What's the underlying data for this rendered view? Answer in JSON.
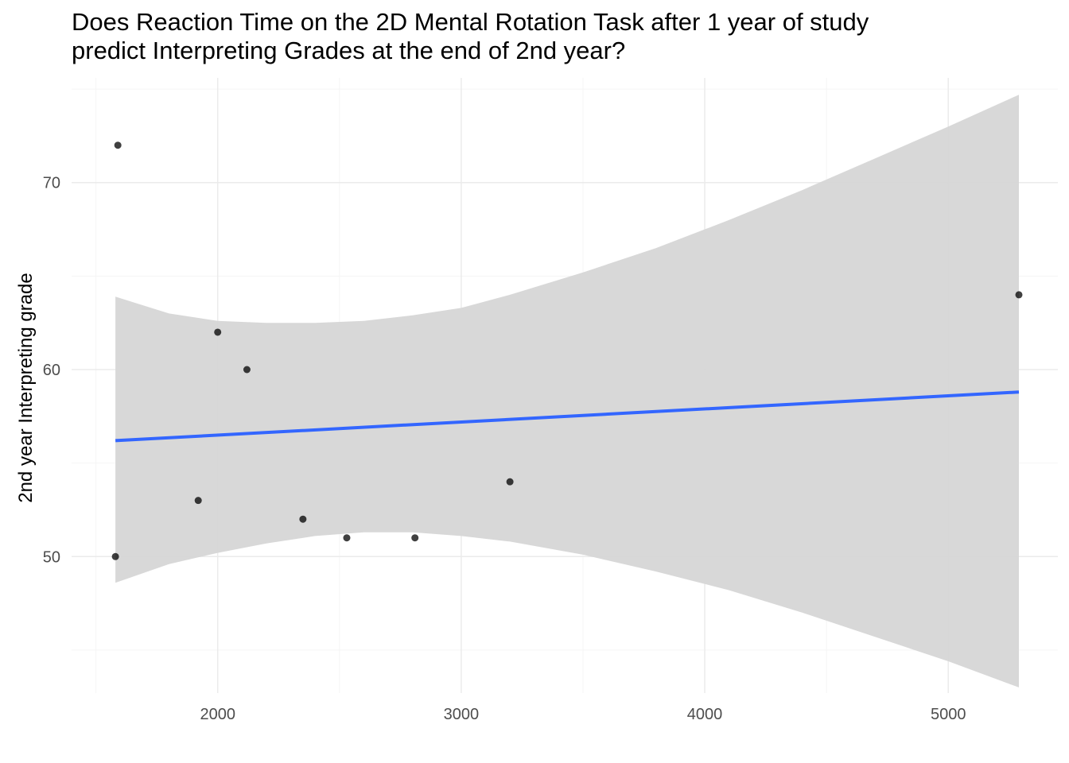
{
  "chart_data": {
    "type": "scatter",
    "title_lines": [
      "Does Reaction Time on the 2D Mental Rotation Task after 1 year of study",
      "predict Interpreting Grades at the end of 2nd year?"
    ],
    "xlabel": "",
    "ylabel": "2nd year Interpreting grade",
    "xlim": [
      1400,
      5450
    ],
    "ylim": [
      42.7,
      75.6
    ],
    "x_ticks": [
      2000,
      3000,
      4000,
      5000
    ],
    "x_minor": [
      1500,
      2500,
      3500,
      4500
    ],
    "y_ticks": [
      50,
      60,
      70
    ],
    "y_minor": [
      45,
      55,
      65,
      75
    ],
    "grid": true,
    "colors": {
      "points": "#000000",
      "line": "#3366ff",
      "band": "#d6d6d6",
      "grid_major": "#ebebeb",
      "grid_minor": "#f5f5f5"
    },
    "points": [
      {
        "x": 1590,
        "y": 72
      },
      {
        "x": 1580,
        "y": 50
      },
      {
        "x": 1920,
        "y": 53
      },
      {
        "x": 2000,
        "y": 62
      },
      {
        "x": 2120,
        "y": 60
      },
      {
        "x": 2350,
        "y": 52
      },
      {
        "x": 2530,
        "y": 51
      },
      {
        "x": 2810,
        "y": 51
      },
      {
        "x": 3200,
        "y": 54
      },
      {
        "x": 5290,
        "y": 64
      }
    ],
    "fit_line": {
      "x": [
        1580,
        5290
      ],
      "y": [
        56.2,
        58.8
      ]
    },
    "confidence_band": [
      {
        "x": 1580,
        "lower": 48.6,
        "upper": 63.9
      },
      {
        "x": 1800,
        "lower": 49.6,
        "upper": 63.0
      },
      {
        "x": 2000,
        "lower": 50.2,
        "upper": 62.6
      },
      {
        "x": 2200,
        "lower": 50.7,
        "upper": 62.5
      },
      {
        "x": 2400,
        "lower": 51.1,
        "upper": 62.5
      },
      {
        "x": 2600,
        "lower": 51.3,
        "upper": 62.6
      },
      {
        "x": 2800,
        "lower": 51.3,
        "upper": 62.9
      },
      {
        "x": 3000,
        "lower": 51.1,
        "upper": 63.3
      },
      {
        "x": 3200,
        "lower": 50.8,
        "upper": 64.0
      },
      {
        "x": 3500,
        "lower": 50.1,
        "upper": 65.2
      },
      {
        "x": 3800,
        "lower": 49.2,
        "upper": 66.5
      },
      {
        "x": 4100,
        "lower": 48.2,
        "upper": 68.0
      },
      {
        "x": 4400,
        "lower": 47.0,
        "upper": 69.6
      },
      {
        "x": 4700,
        "lower": 45.7,
        "upper": 71.3
      },
      {
        "x": 5000,
        "lower": 44.4,
        "upper": 73.0
      },
      {
        "x": 5290,
        "lower": 43.0,
        "upper": 74.7
      }
    ]
  }
}
